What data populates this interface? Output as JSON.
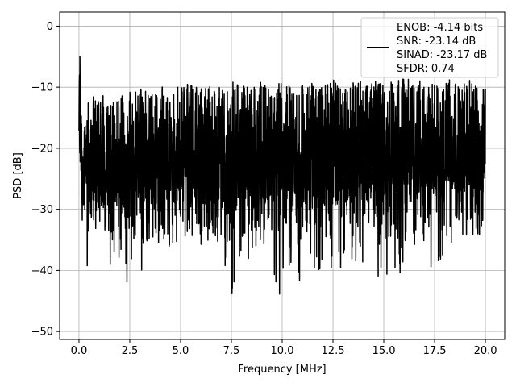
{
  "chart_data": {
    "type": "line",
    "title": "",
    "xlabel": "Frequency [MHz]",
    "ylabel": "PSD [dB]",
    "xlim": [
      -0.95,
      20.95
    ],
    "ylim": [
      -51.3,
      2.3
    ],
    "x_ticks": [
      0.0,
      2.5,
      5.0,
      7.5,
      10.0,
      12.5,
      15.0,
      17.5,
      20.0
    ],
    "x_tick_labels": [
      "0.0",
      "2.5",
      "5.0",
      "7.5",
      "10.0",
      "12.5",
      "15.0",
      "17.5",
      "20.0"
    ],
    "y_ticks": [
      0,
      -10,
      -20,
      -30,
      -40,
      -50
    ],
    "y_tick_labels": [
      "0",
      "−10",
      "−20",
      "−30",
      "−40",
      "−50"
    ],
    "grid": true,
    "legend": {
      "placement": "top-right",
      "entries": [
        "ENOB: -4.14 bits",
        "SNR: -23.14 dB",
        "SINAD: -23.17 dB",
        "SFDR: 0.74"
      ]
    },
    "series": [
      {
        "color": "#000000",
        "x": [
          0.0,
          0.04,
          0.08,
          0.12,
          0.16,
          0.22,
          0.3,
          0.38,
          0.45,
          0.5,
          0.6,
          0.7,
          0.8,
          0.9,
          1.0,
          1.2,
          1.4,
          1.6,
          1.65,
          1.8,
          2.0,
          2.2,
          2.4,
          2.6,
          2.8,
          3.0,
          3.2,
          3.4,
          3.6,
          3.8,
          4.0,
          4.5,
          5.0,
          5.5,
          6.0,
          6.5,
          7.0,
          7.4,
          7.5,
          8.0,
          8.5,
          9.0,
          9.5,
          9.9,
          10.0,
          10.5,
          10.6,
          11.0,
          11.5,
          12.0,
          12.5,
          13.0,
          13.5,
          14.0,
          14.4,
          14.5,
          15.0,
          15.3,
          15.5,
          16.0,
          16.5,
          17.0,
          17.5,
          18.0,
          18.5,
          19.0,
          19.5,
          19.8,
          20.0
        ],
        "y_high": [
          -4.7,
          -0.8,
          -7.0,
          -10.0,
          -12.0,
          -11.0,
          -13.0,
          -12.0,
          -11.5,
          -11.0,
          -13.0,
          -11.0,
          -12.0,
          -11.0,
          -12.5,
          -11.0,
          -12.0,
          -11.0,
          -10.0,
          -11.0,
          -12.0,
          -11.0,
          -10.5,
          -11.0,
          -10.5,
          -10.0,
          -11.0,
          -10.0,
          -11.0,
          -10.5,
          -9.5,
          -10.5,
          -9.5,
          -9.0,
          -10.0,
          -9.0,
          -10.0,
          -9.5,
          -9.0,
          -9.5,
          -10.0,
          -9.0,
          -10.5,
          -9.0,
          -9.5,
          -9.0,
          -10.0,
          -9.5,
          -9.0,
          -9.5,
          -8.5,
          -9.5,
          -9.0,
          -8.5,
          -9.5,
          -9.0,
          -8.0,
          -9.0,
          -9.0,
          -8.5,
          -9.0,
          -8.5,
          -9.5,
          -9.0,
          -8.5,
          -9.0,
          -8.5,
          -9.0,
          -8.5
        ],
        "y_low": [
          -22.0,
          -29.0,
          -28.0,
          -32.0,
          -33.0,
          -30.0,
          -39.0,
          -46.0,
          -35.0,
          -32.0,
          -31.0,
          -36.0,
          -34.0,
          -32.0,
          -33.0,
          -33.0,
          -34.0,
          -43.0,
          -48.5,
          -45.5,
          -38.0,
          -34.0,
          -44.0,
          -40.0,
          -37.0,
          -44.5,
          -36.0,
          -35.0,
          -38.0,
          -35.0,
          -36.0,
          -38.0,
          -34.0,
          -36.0,
          -37.0,
          -35.0,
          -37.0,
          -43.5,
          -46.0,
          -38.0,
          -39.0,
          -38.0,
          -40.0,
          -46.5,
          -44.0,
          -38.0,
          -46.5,
          -40.0,
          -39.0,
          -42.0,
          -39.0,
          -40.0,
          -41.0,
          -39.0,
          -42.0,
          -45.5,
          -38.0,
          -46.5,
          -43.0,
          -39.0,
          -37.0,
          -38.0,
          -41.0,
          -37.0,
          -35.0,
          -34.0,
          -36.0,
          -37.0,
          -22.0
        ],
        "y_mid": [
          -12.0,
          -10.0,
          -15.0,
          -18.0,
          -20.0,
          -19.0,
          -21.0,
          -22.0,
          -20.0,
          -19.0,
          -21.0,
          -20.0,
          -19.0,
          -20.0,
          -19.5,
          -20.0,
          -19.0,
          -21.0,
          -22.0,
          -20.0,
          -19.0,
          -20.0,
          -19.5,
          -20.0,
          -19.0,
          -19.5,
          -20.0,
          -19.0,
          -19.5,
          -20.0,
          -19.0,
          -19.5,
          -19.0,
          -18.5,
          -19.0,
          -19.5,
          -19.0,
          -20.0,
          -19.5,
          -19.0,
          -18.5,
          -19.0,
          -19.5,
          -19.0,
          -18.5,
          -19.0,
          -19.5,
          -19.0,
          -18.5,
          -19.0,
          -18.5,
          -19.0,
          -18.5,
          -18.0,
          -19.0,
          -18.5,
          -18.0,
          -19.0,
          -18.5,
          -18.0,
          -18.5,
          -18.0,
          -18.5,
          -18.0,
          -17.5,
          -18.0,
          -17.5,
          -18.0,
          -17.5
        ]
      }
    ]
  }
}
